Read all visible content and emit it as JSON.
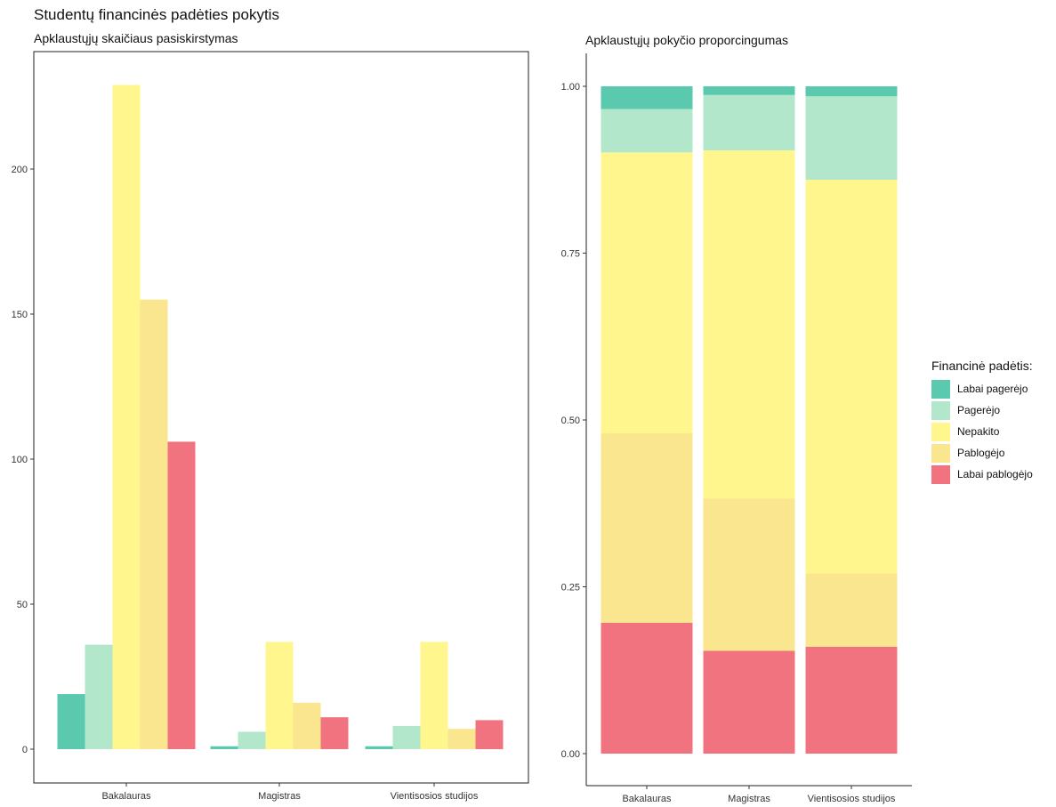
{
  "title": "Studentų financinės padėties pokytis",
  "legend_title": "Financinė padėtis:",
  "chart_data": [
    {
      "type": "bar",
      "title": "Apklaustųjų skaičiaus pasiskirstymas",
      "categories": [
        "Bakalauras",
        "Magistras",
        "Vientisosios studijos"
      ],
      "series": [
        {
          "name": "Labai pagerėjo",
          "color": "#3dbfa0",
          "values": [
            19,
            1,
            1
          ]
        },
        {
          "name": "Pagerėjo",
          "color": "#a6e3c2",
          "values": [
            36,
            6,
            8
          ]
        },
        {
          "name": "Nepakito",
          "color": "#fff57a",
          "values": [
            229,
            37,
            37
          ]
        },
        {
          "name": "Pablogėjo",
          "color": "#f9e27a",
          "values": [
            155,
            16,
            7
          ]
        },
        {
          "name": "Labai pablogėjo",
          "color": "#ef5a6a",
          "values": [
            106,
            11,
            10
          ]
        }
      ],
      "yticks": [
        0,
        50,
        100,
        150,
        200
      ],
      "ylim": [
        0,
        240
      ],
      "grid": false,
      "legend": "right"
    },
    {
      "type": "bar",
      "stacked": "fill",
      "title": "Apklaustųjų pokyčio proporcingumas",
      "categories": [
        "Bakalauras",
        "Magistras",
        "Vientisosios studijos"
      ],
      "series": [
        {
          "name": "Labai pagerėjo",
          "color": "#3dbfa0",
          "values": [
            0.034,
            0.013,
            0.015
          ]
        },
        {
          "name": "Pagerėjo",
          "color": "#a6e3c2",
          "values": [
            0.065,
            0.083,
            0.125
          ]
        },
        {
          "name": "Nepakito",
          "color": "#fff57a",
          "values": [
            0.421,
            0.522,
            0.59
          ]
        },
        {
          "name": "Pablogėjo",
          "color": "#f9e27a",
          "values": [
            0.284,
            0.228,
            0.11
          ]
        },
        {
          "name": "Labai pablogėjo",
          "color": "#ef5a6a",
          "values": [
            0.196,
            0.154,
            0.16
          ]
        }
      ],
      "yticks": [
        "0.00",
        "0.25",
        "0.50",
        "0.75",
        "1.00"
      ],
      "ylim": [
        0,
        1
      ],
      "grid": false,
      "legend": "right"
    }
  ]
}
